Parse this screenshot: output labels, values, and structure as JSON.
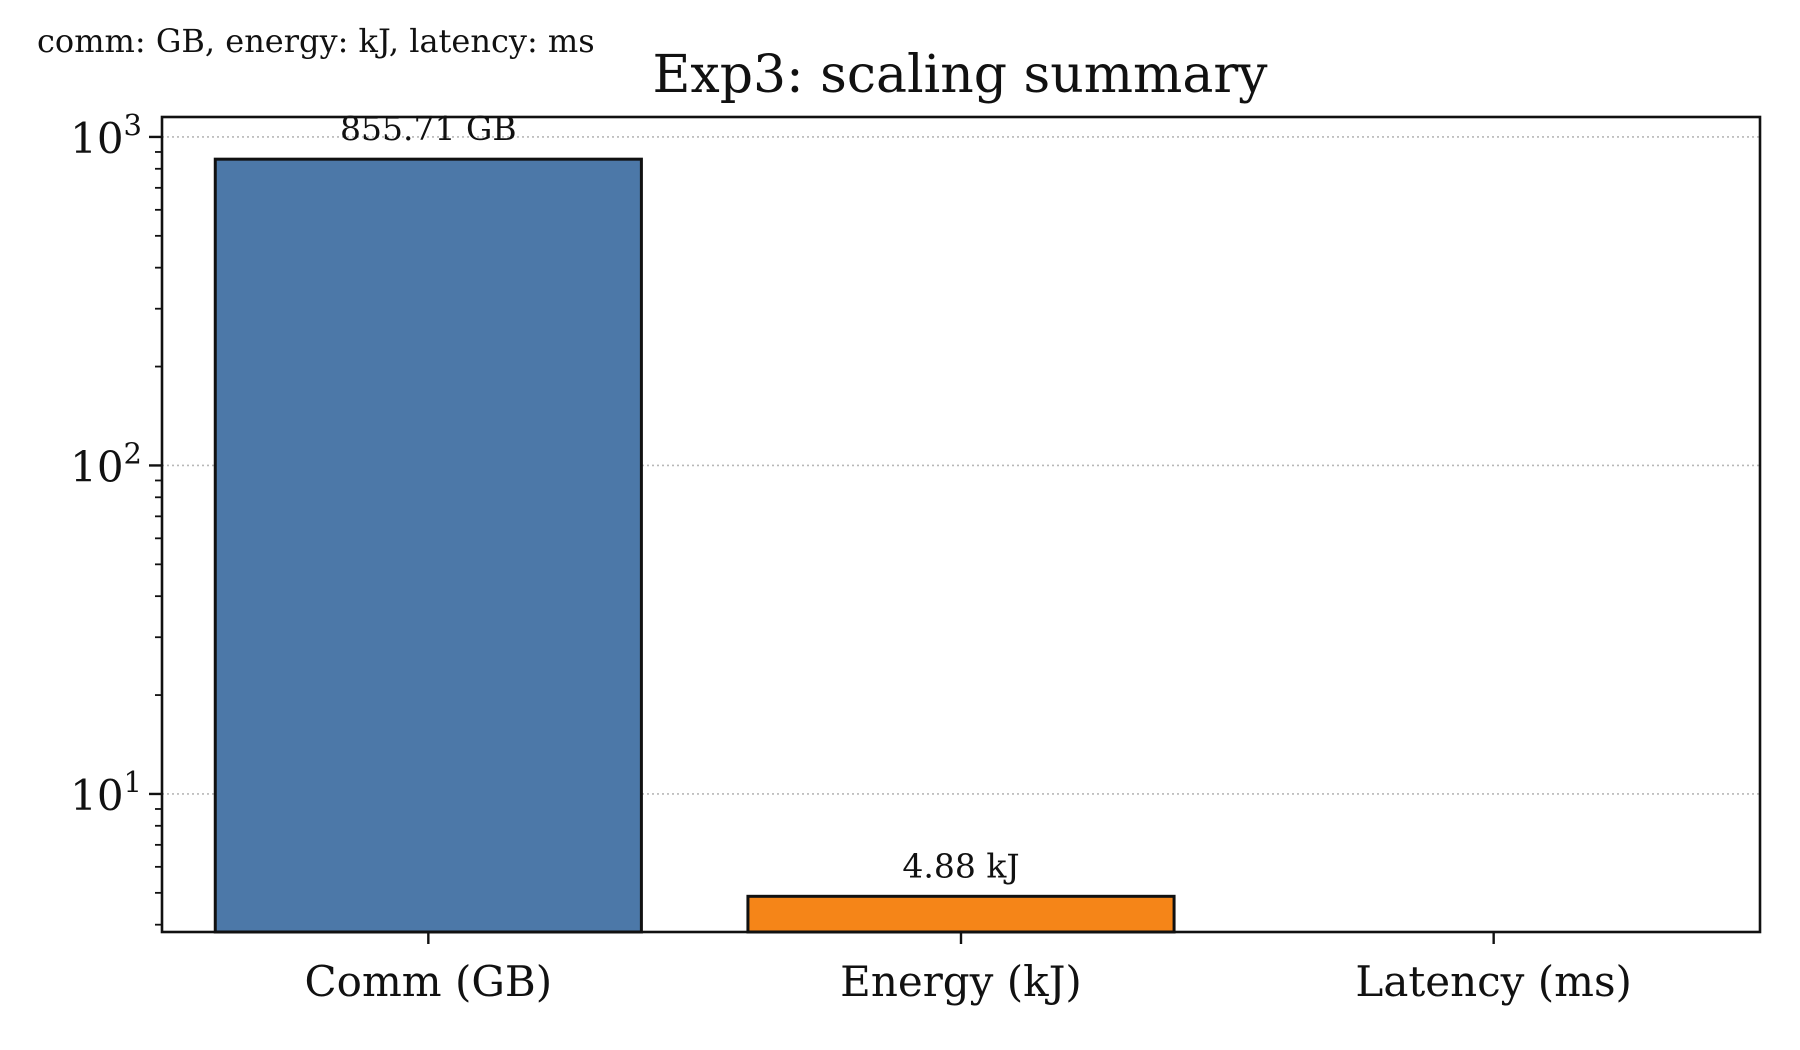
{
  "note": "comm: GB, energy: kJ, latency: ms",
  "chart_data": {
    "type": "bar",
    "title": "Exp3: scaling summary",
    "xlabel": "",
    "ylabel": "",
    "yscale": "log",
    "ylim": [
      3.8,
      1150
    ],
    "yticks": [
      {
        "value": 10,
        "base": "10",
        "exp": "1"
      },
      {
        "value": 100,
        "base": "10",
        "exp": "2"
      },
      {
        "value": 1000,
        "base": "10",
        "exp": "3"
      }
    ],
    "grid": "y-dotted",
    "categories": [
      "Comm (GB)",
      "Energy (kJ)",
      "Latency (ms)"
    ],
    "values": [
      855.71,
      4.88,
      null
    ],
    "data_labels": [
      "855.71 GB",
      "4.88 kJ",
      ""
    ],
    "colors": [
      "#4c78a8",
      "#f58518",
      "#e45756"
    ]
  }
}
